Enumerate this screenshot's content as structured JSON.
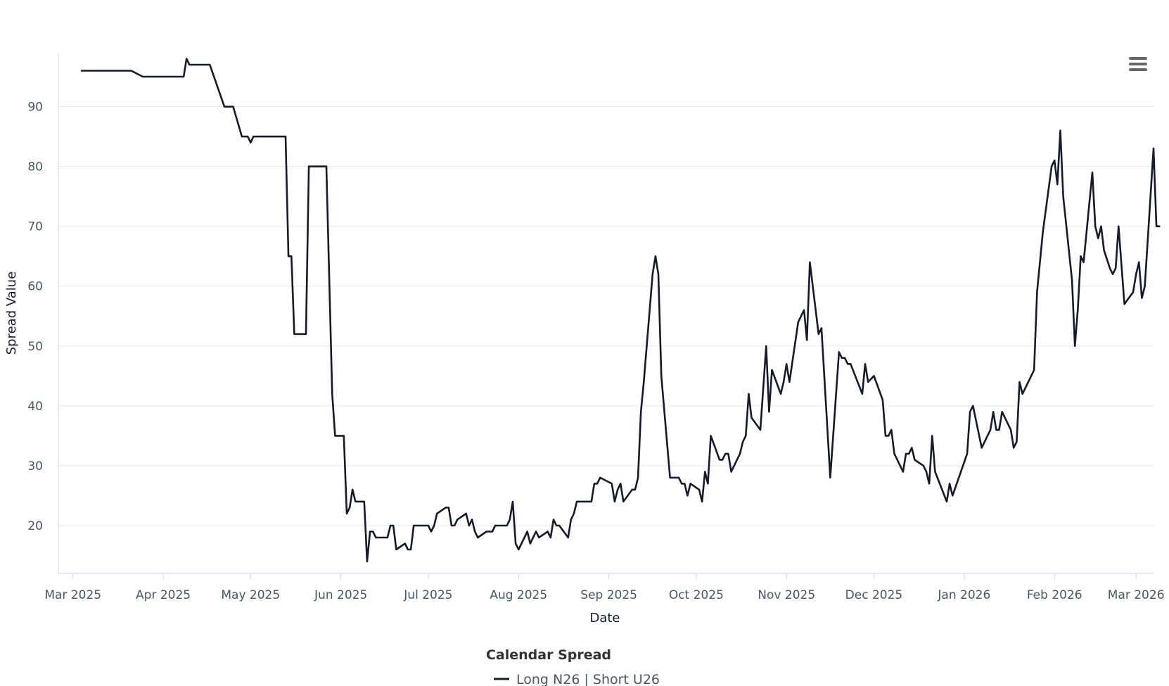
{
  "colors": {
    "line": "#151a2d",
    "grid": "#e6e8f0",
    "axis_line": "#ccd6eb",
    "tick_text": "#4a5568",
    "menu": "#666666"
  },
  "icons": {
    "menu": "hamburger-menu-icon"
  },
  "chart_data": {
    "type": "line",
    "xlabel": "Date",
    "ylabel": "Spread Value",
    "xlim": [
      "2025-02-24",
      "2026-03-07"
    ],
    "ylim": [
      12,
      99
    ],
    "y_ticks": [
      20,
      30,
      40,
      50,
      60,
      70,
      80,
      90
    ],
    "x_ticks": [
      {
        "date": "2025-03-01",
        "label": "Mar 2025"
      },
      {
        "date": "2025-04-01",
        "label": "Apr 2025"
      },
      {
        "date": "2025-05-01",
        "label": "May 2025"
      },
      {
        "date": "2025-06-01",
        "label": "Jun 2025"
      },
      {
        "date": "2025-07-01",
        "label": "Jul 2025"
      },
      {
        "date": "2025-08-01",
        "label": "Aug 2025"
      },
      {
        "date": "2025-09-01",
        "label": "Sep 2025"
      },
      {
        "date": "2025-10-01",
        "label": "Oct 2025"
      },
      {
        "date": "2025-11-01",
        "label": "Nov 2025"
      },
      {
        "date": "2025-12-01",
        "label": "Dec 2025"
      },
      {
        "date": "2026-01-01",
        "label": "Jan 2026"
      },
      {
        "date": "2026-02-01",
        "label": "Feb 2026"
      },
      {
        "date": "2026-03-01",
        "label": "Mar 2026"
      }
    ],
    "grid": true,
    "legend": {
      "title": "Calendar Spread",
      "placement": "bottom-center"
    },
    "series": [
      {
        "name": "Long N26 | Short U26",
        "points": [
          [
            "2025-03-04",
            96
          ],
          [
            "2025-03-21",
            96
          ],
          [
            "2025-03-25",
            95
          ],
          [
            "2025-04-08",
            95
          ],
          [
            "2025-04-09",
            98
          ],
          [
            "2025-04-10",
            97
          ],
          [
            "2025-04-17",
            97
          ],
          [
            "2025-04-22",
            90
          ],
          [
            "2025-04-25",
            90
          ],
          [
            "2025-04-28",
            85
          ],
          [
            "2025-04-30",
            85
          ],
          [
            "2025-05-01",
            84
          ],
          [
            "2025-05-02",
            85
          ],
          [
            "2025-05-13",
            85
          ],
          [
            "2025-05-14",
            65
          ],
          [
            "2025-05-15",
            65
          ],
          [
            "2025-05-16",
            52
          ],
          [
            "2025-05-20",
            52
          ],
          [
            "2025-05-21",
            80
          ],
          [
            "2025-05-27",
            80
          ],
          [
            "2025-05-29",
            42
          ],
          [
            "2025-05-30",
            35
          ],
          [
            "2025-06-02",
            35
          ],
          [
            "2025-06-03",
            22
          ],
          [
            "2025-06-04",
            23
          ],
          [
            "2025-06-05",
            26
          ],
          [
            "2025-06-06",
            24
          ],
          [
            "2025-06-09",
            24
          ],
          [
            "2025-06-10",
            14
          ],
          [
            "2025-06-11",
            19
          ],
          [
            "2025-06-12",
            19
          ],
          [
            "2025-06-13",
            18
          ],
          [
            "2025-06-17",
            18
          ],
          [
            "2025-06-18",
            20
          ],
          [
            "2025-06-19",
            20
          ],
          [
            "2025-06-20",
            16
          ],
          [
            "2025-06-23",
            17
          ],
          [
            "2025-06-24",
            16
          ],
          [
            "2025-06-25",
            16
          ],
          [
            "2025-06-26",
            20
          ],
          [
            "2025-06-30",
            20
          ],
          [
            "2025-07-01",
            20
          ],
          [
            "2025-07-02",
            19
          ],
          [
            "2025-07-03",
            20
          ],
          [
            "2025-07-04",
            22
          ],
          [
            "2025-07-07",
            23
          ],
          [
            "2025-07-08",
            23
          ],
          [
            "2025-07-09",
            20
          ],
          [
            "2025-07-10",
            20
          ],
          [
            "2025-07-11",
            21
          ],
          [
            "2025-07-14",
            22
          ],
          [
            "2025-07-15",
            20
          ],
          [
            "2025-07-16",
            21
          ],
          [
            "2025-07-17",
            19
          ],
          [
            "2025-07-18",
            18
          ],
          [
            "2025-07-21",
            19
          ],
          [
            "2025-07-22",
            19
          ],
          [
            "2025-07-23",
            19
          ],
          [
            "2025-07-24",
            20
          ],
          [
            "2025-07-28",
            20
          ],
          [
            "2025-07-29",
            21
          ],
          [
            "2025-07-30",
            24
          ],
          [
            "2025-07-31",
            17
          ],
          [
            "2025-08-01",
            16
          ],
          [
            "2025-08-04",
            19
          ],
          [
            "2025-08-05",
            17
          ],
          [
            "2025-08-07",
            19
          ],
          [
            "2025-08-08",
            18
          ],
          [
            "2025-08-11",
            19
          ],
          [
            "2025-08-12",
            18
          ],
          [
            "2025-08-13",
            21
          ],
          [
            "2025-08-14",
            20
          ],
          [
            "2025-08-15",
            20
          ],
          [
            "2025-08-18",
            18
          ],
          [
            "2025-08-19",
            21
          ],
          [
            "2025-08-20",
            22
          ],
          [
            "2025-08-21",
            24
          ],
          [
            "2025-08-26",
            24
          ],
          [
            "2025-08-27",
            27
          ],
          [
            "2025-08-28",
            27
          ],
          [
            "2025-08-29",
            28
          ],
          [
            "2025-09-02",
            27
          ],
          [
            "2025-09-03",
            24
          ],
          [
            "2025-09-04",
            26
          ],
          [
            "2025-09-05",
            27
          ],
          [
            "2025-09-06",
            24
          ],
          [
            "2025-09-09",
            26
          ],
          [
            "2025-09-10",
            26
          ],
          [
            "2025-09-11",
            28
          ],
          [
            "2025-09-12",
            39
          ],
          [
            "2025-09-13",
            44
          ],
          [
            "2025-09-16",
            62
          ],
          [
            "2025-09-17",
            65
          ],
          [
            "2025-09-18",
            62
          ],
          [
            "2025-09-19",
            45
          ],
          [
            "2025-09-22",
            28
          ],
          [
            "2025-09-25",
            28
          ],
          [
            "2025-09-26",
            27
          ],
          [
            "2025-09-27",
            27
          ],
          [
            "2025-09-28",
            25
          ],
          [
            "2025-09-29",
            27
          ],
          [
            "2025-10-02",
            26
          ],
          [
            "2025-10-03",
            24
          ],
          [
            "2025-10-04",
            29
          ],
          [
            "2025-10-05",
            27
          ],
          [
            "2025-10-06",
            35
          ],
          [
            "2025-10-09",
            31
          ],
          [
            "2025-10-10",
            31
          ],
          [
            "2025-10-11",
            32
          ],
          [
            "2025-10-12",
            32
          ],
          [
            "2025-10-13",
            29
          ],
          [
            "2025-10-16",
            32
          ],
          [
            "2025-10-17",
            34
          ],
          [
            "2025-10-18",
            35
          ],
          [
            "2025-10-19",
            42
          ],
          [
            "2025-10-20",
            38
          ],
          [
            "2025-10-23",
            36
          ],
          [
            "2025-10-25",
            50
          ],
          [
            "2025-10-26",
            39
          ],
          [
            "2025-10-27",
            46
          ],
          [
            "2025-10-30",
            42
          ],
          [
            "2025-10-31",
            44
          ],
          [
            "2025-11-01",
            47
          ],
          [
            "2025-11-02",
            44
          ],
          [
            "2025-11-05",
            54
          ],
          [
            "2025-11-06",
            55
          ],
          [
            "2025-11-07",
            56
          ],
          [
            "2025-11-08",
            51
          ],
          [
            "2025-11-09",
            64
          ],
          [
            "2025-11-12",
            52
          ],
          [
            "2025-11-13",
            53
          ],
          [
            "2025-11-16",
            28
          ],
          [
            "2025-11-19",
            49
          ],
          [
            "2025-11-20",
            48
          ],
          [
            "2025-11-21",
            48
          ],
          [
            "2025-11-22",
            47
          ],
          [
            "2025-11-23",
            47
          ],
          [
            "2025-11-27",
            42
          ],
          [
            "2025-11-28",
            47
          ],
          [
            "2025-11-29",
            44
          ],
          [
            "2025-12-01",
            45
          ],
          [
            "2025-12-04",
            41
          ],
          [
            "2025-12-05",
            35
          ],
          [
            "2025-12-06",
            35
          ],
          [
            "2025-12-07",
            36
          ],
          [
            "2025-12-08",
            32
          ],
          [
            "2025-12-11",
            29
          ],
          [
            "2025-12-12",
            32
          ],
          [
            "2025-12-13",
            32
          ],
          [
            "2025-12-14",
            33
          ],
          [
            "2025-12-15",
            31
          ],
          [
            "2025-12-18",
            30
          ],
          [
            "2025-12-19",
            29
          ],
          [
            "2025-12-20",
            27
          ],
          [
            "2025-12-21",
            35
          ],
          [
            "2025-12-22",
            29
          ],
          [
            "2025-12-26",
            24
          ],
          [
            "2025-12-27",
            27
          ],
          [
            "2025-12-28",
            25
          ],
          [
            "2026-01-02",
            32
          ],
          [
            "2026-01-03",
            39
          ],
          [
            "2026-01-04",
            40
          ],
          [
            "2026-01-07",
            33
          ],
          [
            "2026-01-10",
            36
          ],
          [
            "2026-01-11",
            39
          ],
          [
            "2026-01-12",
            36
          ],
          [
            "2026-01-13",
            36
          ],
          [
            "2026-01-14",
            39
          ],
          [
            "2026-01-17",
            36
          ],
          [
            "2026-01-18",
            33
          ],
          [
            "2026-01-19",
            34
          ],
          [
            "2026-01-20",
            44
          ],
          [
            "2026-01-21",
            42
          ],
          [
            "2026-01-25",
            46
          ],
          [
            "2026-01-26",
            59
          ],
          [
            "2026-01-28",
            69
          ],
          [
            "2026-01-31",
            80
          ],
          [
            "2026-02-01",
            81
          ],
          [
            "2026-02-02",
            77
          ],
          [
            "2026-02-03",
            86
          ],
          [
            "2026-02-04",
            75
          ],
          [
            "2026-02-07",
            61
          ],
          [
            "2026-02-08",
            50
          ],
          [
            "2026-02-09",
            56
          ],
          [
            "2026-02-10",
            65
          ],
          [
            "2026-02-11",
            64
          ],
          [
            "2026-02-14",
            79
          ],
          [
            "2026-02-15",
            70
          ],
          [
            "2026-02-16",
            68
          ],
          [
            "2026-02-17",
            70
          ],
          [
            "2026-02-18",
            66
          ],
          [
            "2026-02-20",
            63
          ],
          [
            "2026-02-21",
            62
          ],
          [
            "2026-02-22",
            63
          ],
          [
            "2026-02-23",
            70
          ],
          [
            "2026-02-25",
            57
          ],
          [
            "2026-02-28",
            59
          ],
          [
            "2026-03-01",
            62
          ],
          [
            "2026-03-02",
            64
          ],
          [
            "2026-03-03",
            58
          ],
          [
            "2026-03-04",
            60
          ],
          [
            "2026-03-07",
            83
          ],
          [
            "2026-03-08",
            70
          ],
          [
            "2026-03-09",
            70
          ]
        ]
      }
    ]
  }
}
